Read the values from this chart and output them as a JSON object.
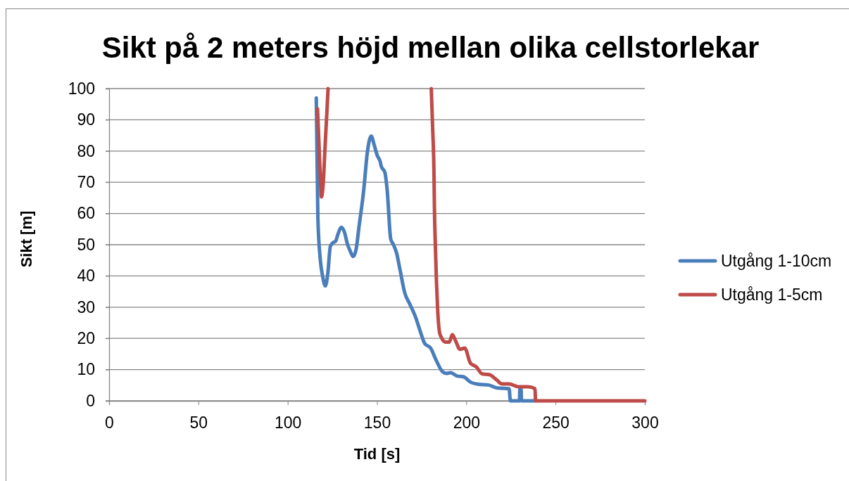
{
  "chart_data": {
    "type": "line",
    "title": "Sikt på 2 meters höjd mellan olika cellstorlekar",
    "xlabel": "Tid [s]",
    "ylabel": "Sikt [m]",
    "xlim": [
      0,
      300
    ],
    "ylim": [
      0,
      100
    ],
    "xticks": [
      0,
      50,
      100,
      150,
      200,
      250,
      300
    ],
    "yticks": [
      0,
      10,
      20,
      30,
      40,
      50,
      60,
      70,
      80,
      90,
      100
    ],
    "grid": "y",
    "legend": "right",
    "line_style": "solid",
    "series": [
      {
        "name": "Utgång 1-10cm",
        "color": "#4a7ebb",
        "x": [
          116.0,
          116.9,
          118.3,
          119.6,
          121.1,
          122.5,
          123.9,
          125.5,
          126.8,
          128.1,
          130.1,
          131.8,
          133.4,
          135.0,
          136.7,
          138.4,
          139.9,
          142.6,
          144.6,
          146.8,
          148.5,
          150.2,
          151.8,
          152.4,
          154.4,
          155.7,
          157.7,
          159.0,
          161.0,
          162.9,
          165.6,
          168.2,
          171.5,
          174.1,
          176.7,
          180.0,
          183.3,
          186.6,
          189.0,
          191.2,
          195.1,
          198.4,
          202.4,
          207.0,
          212.2,
          217.4,
          224.0,
          224.7,
          229.8,
          230.0,
          230.7,
          230.9,
          238.5
        ],
        "values": [
          97,
          58.6,
          45,
          39.8,
          36.8,
          41,
          49.5,
          50.7,
          51.1,
          53.3,
          55.6,
          54,
          50.3,
          48,
          46.2,
          48.8,
          55.6,
          67.6,
          79.6,
          84.8,
          81.8,
          78.5,
          76.6,
          75.1,
          73.2,
          67.6,
          51.8,
          50.3,
          47.3,
          42,
          34.5,
          31.2,
          27,
          22.5,
          18.4,
          16.9,
          12.8,
          9.4,
          8.8,
          9.0,
          7.9,
          7.7,
          6.0,
          5.3,
          5.1,
          4.1,
          3.9,
          0,
          0,
          3.8,
          3.8,
          0,
          0
        ]
      },
      {
        "name": "Utgång 1-5cm",
        "color": "#be4b48",
        "x": [
          116.7,
          117.6,
          118.3,
          118.9,
          120.0,
          120.9,
          121.8,
          122.6,
          150,
          180.4,
          181.2,
          181.9,
          182.2,
          182.7,
          183.3,
          184.0,
          185.0,
          185.9,
          188.5,
          190.5,
          192.2,
          193.8,
          196.5,
          199.1,
          202.4,
          205.6,
          208.9,
          212.9,
          216.8,
          220.1,
          224.0,
          229.3,
          234.5,
          238.5,
          238.8,
          300
        ],
        "values": [
          93.5,
          81.1,
          71.3,
          65.3,
          70.6,
          81.1,
          90.8,
          100,
          null,
          100,
          87.1,
          73.6,
          60.8,
          49.5,
          38.3,
          29,
          22,
          20.5,
          18.8,
          18.8,
          21.2,
          19.5,
          16.5,
          16.9,
          12.0,
          10.9,
          8.6,
          8.4,
          6.8,
          5.4,
          5.4,
          4.5,
          4.5,
          3.9,
          0,
          0
        ]
      }
    ]
  }
}
